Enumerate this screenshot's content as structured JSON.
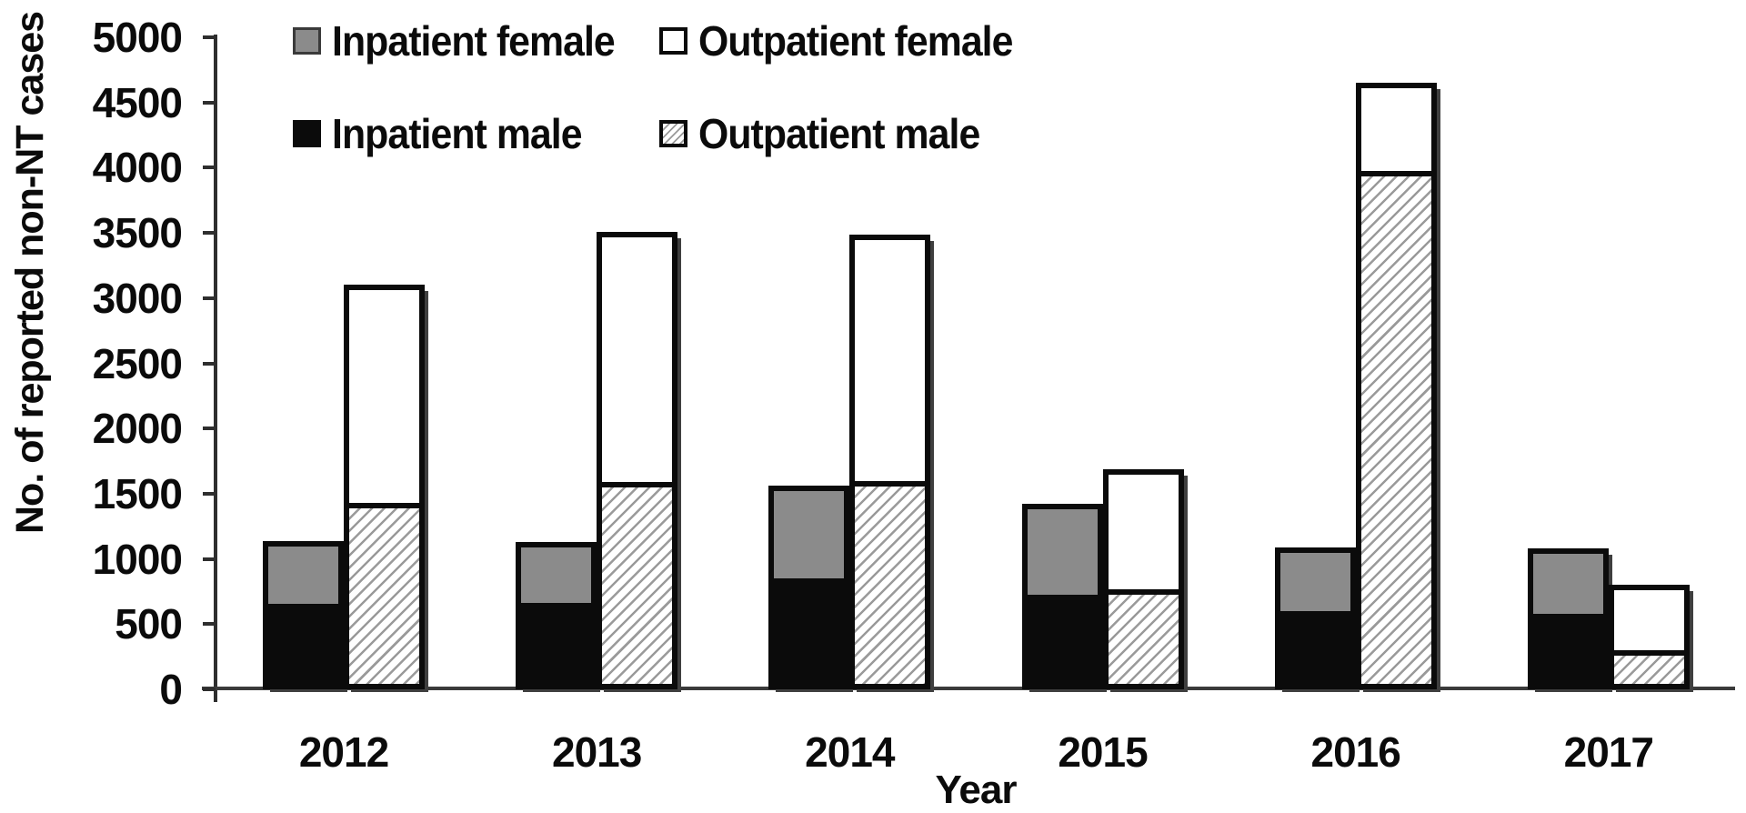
{
  "chart_data": {
    "type": "bar",
    "stacked": true,
    "grid": false,
    "title": "",
    "xlabel": "Year",
    "ylabel": "No. of reported non-NT cases",
    "categories": [
      "2012",
      "2013",
      "2014",
      "2015",
      "2016",
      "2017"
    ],
    "bars_per_category": [
      "inpatient",
      "outpatient"
    ],
    "series": [
      {
        "name": "Inpatient male",
        "stack": "inpatient",
        "pattern": "solid-black",
        "color": "#0b0b0b",
        "values": [
          665,
          670,
          855,
          725,
          600,
          585
        ]
      },
      {
        "name": "Inpatient female",
        "stack": "inpatient",
        "pattern": "solid-gray",
        "color": "#8b8b8b",
        "values": [
          475,
          460,
          710,
          695,
          485,
          495
        ]
      },
      {
        "name": "Outpatient male",
        "stack": "outpatient",
        "pattern": "diagonal-hatch",
        "color": "#9a9a9a",
        "values": [
          1400,
          1565,
          1570,
          740,
          4000,
          255
        ]
      },
      {
        "name": "Outpatient female",
        "stack": "outpatient",
        "pattern": "solid-white",
        "color": "#ffffff",
        "values": [
          1700,
          1945,
          1920,
          945,
          650,
          550
        ]
      }
    ],
    "stack_order_bottom_to_top": {
      "inpatient": [
        "Inpatient male",
        "Inpatient female"
      ],
      "outpatient": [
        "Outpatient male",
        "Outpatient female"
      ]
    },
    "stack_totals": {
      "inpatient": [
        1140,
        1130,
        1565,
        1420,
        1085,
        1080
      ],
      "outpatient": [
        3100,
        3510,
        3490,
        1685,
        4650,
        805
      ]
    },
    "ylim": [
      0,
      5000
    ],
    "ytick_labels": [
      "0",
      "500",
      "1000",
      "1500",
      "2000",
      "2500",
      "3000",
      "3500",
      "4000",
      "4500",
      "5000"
    ],
    "legend_position": "top-left",
    "legend_rows": [
      [
        "Inpatient female",
        "Outpatient female"
      ],
      [
        "Inpatient male",
        "Outpatient male"
      ]
    ]
  },
  "colors": {
    "bar_border": "#0b0b0b",
    "axis_line": "#3a3a3a",
    "shadow": "#3f3f3f",
    "hatch_line": "#9a9a9a",
    "gray_fill": "#8b8b8b",
    "black_fill": "#0b0b0b",
    "white_fill": "#ffffff",
    "background": "#ffffff"
  }
}
